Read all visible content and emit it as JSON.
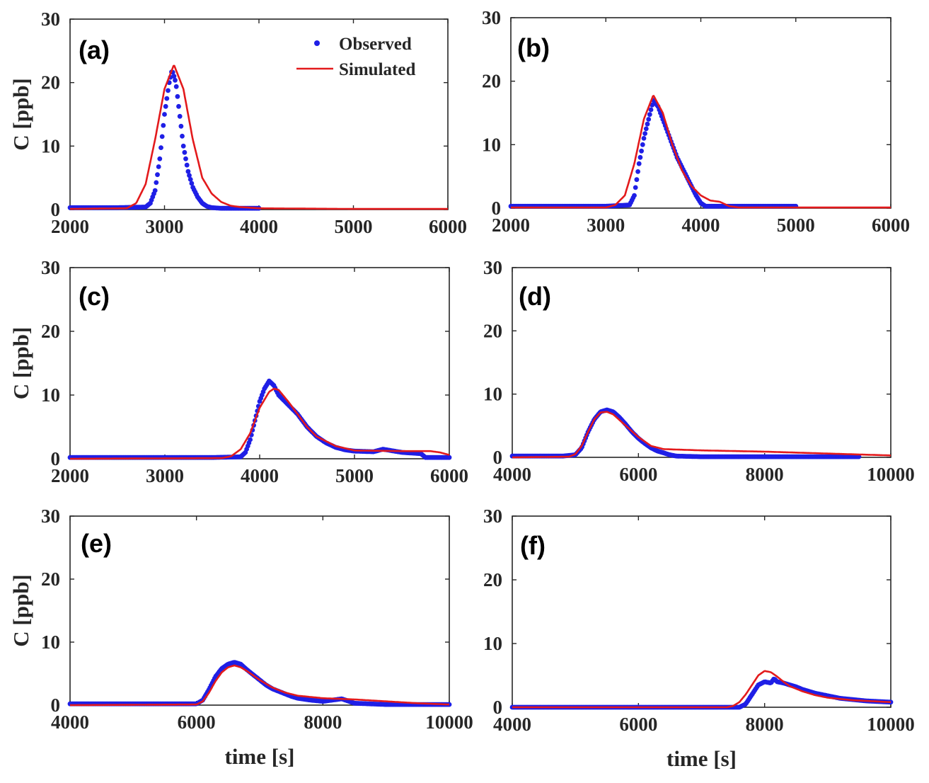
{
  "colors": {
    "observed": "#1f1fe6",
    "simulated": "#e31a1c",
    "axis": "#262626"
  },
  "legend": {
    "observed": "Observed",
    "simulated": "Simulated"
  },
  "chart_data": [
    {
      "type": "line",
      "panel_label": "(a)",
      "xlim": [
        2000,
        6000
      ],
      "ylim": [
        0,
        30
      ],
      "xticks": [
        2000,
        3000,
        4000,
        5000,
        6000
      ],
      "yticks": [
        0,
        10,
        20,
        30
      ],
      "ylabel": "C [ppb]",
      "xlabel": "",
      "series": [
        {
          "name": "Observed",
          "style": "markers",
          "x": [
            2000,
            2500,
            2800,
            2850,
            2900,
            2950,
            3000,
            3050,
            3080,
            3120,
            3160,
            3200,
            3250,
            3300,
            3350,
            3400,
            3450,
            3500,
            3600,
            4000
          ],
          "y": [
            0.3,
            0.3,
            0.4,
            1.0,
            3.0,
            8.0,
            15.0,
            20.0,
            22.0,
            20.0,
            15.0,
            10.0,
            6.0,
            3.5,
            2.0,
            1.0,
            0.5,
            0.3,
            0.2,
            0.2
          ]
        },
        {
          "name": "Simulated",
          "style": "line",
          "x": [
            2000,
            2600,
            2700,
            2800,
            2900,
            3000,
            3100,
            3200,
            3300,
            3400,
            3500,
            3600,
            3700,
            3800,
            4000,
            5000,
            6000
          ],
          "y": [
            0.1,
            0.2,
            1.0,
            4.0,
            11.0,
            19.0,
            22.8,
            19.0,
            11.0,
            5.0,
            2.5,
            1.2,
            0.6,
            0.4,
            0.2,
            0.1,
            0.1
          ]
        }
      ]
    },
    {
      "type": "line",
      "panel_label": "(b)",
      "xlim": [
        2000,
        6000
      ],
      "ylim": [
        0,
        30
      ],
      "xticks": [
        2000,
        3000,
        4000,
        5000,
        6000
      ],
      "yticks": [
        0,
        10,
        20,
        30
      ],
      "ylabel": "",
      "xlabel": "",
      "series": [
        {
          "name": "Observed",
          "style": "markers",
          "x": [
            2000,
            3000,
            3250,
            3300,
            3350,
            3400,
            3450,
            3500,
            3550,
            3600,
            3650,
            3700,
            3750,
            3800,
            3850,
            3900,
            3950,
            4000,
            4050,
            5000
          ],
          "y": [
            0.3,
            0.3,
            0.5,
            2.0,
            7.0,
            11.0,
            14.0,
            17.0,
            16.0,
            14.0,
            12.0,
            10.0,
            8.0,
            6.5,
            5.0,
            3.5,
            2.0,
            0.8,
            0.3,
            0.3
          ]
        },
        {
          "name": "Simulated",
          "style": "line",
          "x": [
            2000,
            3000,
            3100,
            3200,
            3300,
            3400,
            3500,
            3600,
            3700,
            3800,
            3900,
            4000,
            4100,
            4200,
            4300,
            4400,
            5000,
            6000
          ],
          "y": [
            0.1,
            0.1,
            0.5,
            2.0,
            7.0,
            14.0,
            17.8,
            15.0,
            10.0,
            6.0,
            3.5,
            2.0,
            1.2,
            1.0,
            0.3,
            0.1,
            0.1,
            0.1
          ]
        }
      ]
    },
    {
      "type": "line",
      "panel_label": "(c)",
      "xlim": [
        2000,
        6000
      ],
      "ylim": [
        0,
        30
      ],
      "xticks": [
        2000,
        3000,
        4000,
        5000,
        6000
      ],
      "yticks": [
        0,
        10,
        20,
        30
      ],
      "ylabel": "C [ppb]",
      "xlabel": "",
      "series": [
        {
          "name": "Observed",
          "style": "markers",
          "x": [
            2000,
            3500,
            3800,
            3850,
            3900,
            3950,
            4000,
            4050,
            4100,
            4150,
            4200,
            4300,
            4400,
            4500,
            4600,
            4700,
            4800,
            4900,
            5000,
            5200,
            5300,
            5500,
            5700,
            5750,
            6000
          ],
          "y": [
            0.2,
            0.2,
            0.3,
            1.0,
            3.0,
            6.0,
            9.0,
            11.0,
            12.2,
            11.5,
            10.0,
            8.5,
            7.0,
            5.0,
            3.5,
            2.5,
            1.8,
            1.4,
            1.2,
            1.1,
            1.5,
            1.0,
            0.8,
            0.2,
            0.2
          ]
        },
        {
          "name": "Simulated",
          "style": "line",
          "x": [
            2000,
            3600,
            3700,
            3800,
            3900,
            4000,
            4100,
            4150,
            4200,
            4300,
            4400,
            4500,
            4600,
            4800,
            5000,
            5500,
            5800,
            5900,
            6000
          ],
          "y": [
            0.0,
            0.1,
            0.4,
            1.5,
            4.0,
            8.0,
            10.5,
            11.0,
            10.8,
            9.0,
            7.0,
            5.0,
            3.5,
            2.0,
            1.3,
            1.2,
            1.2,
            1.0,
            0.6
          ]
        }
      ]
    },
    {
      "type": "line",
      "panel_label": "(d)",
      "xlim": [
        4000,
        10000
      ],
      "ylim": [
        0,
        30
      ],
      "xticks": [
        4000,
        6000,
        8000,
        10000
      ],
      "yticks": [
        0,
        10,
        20,
        30
      ],
      "ylabel": "",
      "xlabel": "",
      "series": [
        {
          "name": "Observed",
          "style": "markers",
          "x": [
            4000,
            4800,
            5000,
            5100,
            5200,
            5300,
            5400,
            5500,
            5600,
            5700,
            5800,
            5900,
            6000,
            6100,
            6200,
            6300,
            6400,
            6500,
            6600,
            7000,
            8000,
            9500
          ],
          "y": [
            0.2,
            0.2,
            0.4,
            1.5,
            4.0,
            6.0,
            7.2,
            7.5,
            7.2,
            6.3,
            5.2,
            4.0,
            3.0,
            2.2,
            1.5,
            1.0,
            0.7,
            0.4,
            0.2,
            0.1,
            0.1,
            0.1
          ]
        },
        {
          "name": "Simulated",
          "style": "line",
          "x": [
            4000,
            4900,
            5000,
            5100,
            5200,
            5300,
            5400,
            5500,
            5600,
            5800,
            6000,
            6200,
            6400,
            7000,
            8000,
            9000,
            10000
          ],
          "y": [
            0.0,
            0.1,
            0.5,
            1.8,
            4.0,
            6.0,
            7.1,
            7.2,
            6.8,
            5.0,
            3.2,
            1.8,
            1.3,
            1.1,
            0.9,
            0.6,
            0.3
          ]
        }
      ]
    },
    {
      "type": "line",
      "panel_label": "(e)",
      "xlim": [
        4000,
        10000
      ],
      "ylim": [
        0,
        30
      ],
      "xticks": [
        4000,
        6000,
        8000,
        10000
      ],
      "yticks": [
        0,
        10,
        20,
        30
      ],
      "ylabel": "C [ppb]",
      "xlabel": "time [s]",
      "series": [
        {
          "name": "Observed",
          "style": "markers",
          "x": [
            4000,
            6000,
            6100,
            6200,
            6300,
            6400,
            6500,
            6600,
            6700,
            6800,
            6900,
            7000,
            7100,
            7200,
            7300,
            7400,
            7500,
            7600,
            7800,
            8000,
            8300,
            8500,
            9000,
            10000
          ],
          "y": [
            0.2,
            0.2,
            0.8,
            2.5,
            4.5,
            5.8,
            6.5,
            6.8,
            6.5,
            5.6,
            4.8,
            4.0,
            3.2,
            2.6,
            2.2,
            1.8,
            1.4,
            1.1,
            0.8,
            0.6,
            1.0,
            0.3,
            0.1,
            0.1
          ]
        },
        {
          "name": "Simulated",
          "style": "line",
          "x": [
            4000,
            6000,
            6100,
            6200,
            6300,
            6400,
            6500,
            6600,
            6700,
            6800,
            7000,
            7200,
            7400,
            7600,
            8000,
            8500,
            9000,
            9500,
            10000
          ],
          "y": [
            0.0,
            0.1,
            0.6,
            2.0,
            3.8,
            5.2,
            6.0,
            6.3,
            6.0,
            5.4,
            4.0,
            2.8,
            2.0,
            1.5,
            1.1,
            0.9,
            0.6,
            0.3,
            0.1
          ]
        }
      ]
    },
    {
      "type": "line",
      "panel_label": "(f)",
      "xlim": [
        4000,
        10000
      ],
      "ylim": [
        0,
        30
      ],
      "xticks": [
        4000,
        6000,
        8000,
        10000
      ],
      "yticks": [
        0,
        10,
        20,
        30
      ],
      "ylabel": "",
      "xlabel": "time [s]",
      "series": [
        {
          "name": "Observed",
          "style": "markers",
          "x": [
            4000,
            7600,
            7700,
            7800,
            7900,
            8000,
            8100,
            8150,
            8200,
            8300,
            8400,
            8500,
            8600,
            8800,
            9000,
            9200,
            9400,
            9600,
            9800,
            10000
          ],
          "y": [
            0.0,
            0.0,
            0.5,
            2.0,
            3.5,
            4.0,
            3.8,
            4.5,
            4.0,
            3.8,
            3.5,
            3.2,
            2.8,
            2.2,
            1.8,
            1.4,
            1.2,
            1.0,
            0.9,
            0.8
          ]
        },
        {
          "name": "Simulated",
          "style": "line",
          "x": [
            4000,
            7400,
            7500,
            7600,
            7700,
            7800,
            7900,
            8000,
            8100,
            8200,
            8300,
            8400,
            8600,
            8800,
            9000,
            9400,
            10000
          ],
          "y": [
            0.0,
            0.0,
            0.2,
            0.8,
            2.0,
            3.5,
            5.0,
            5.7,
            5.5,
            4.8,
            4.0,
            3.3,
            2.5,
            1.9,
            1.5,
            1.1,
            0.8
          ]
        }
      ]
    }
  ]
}
